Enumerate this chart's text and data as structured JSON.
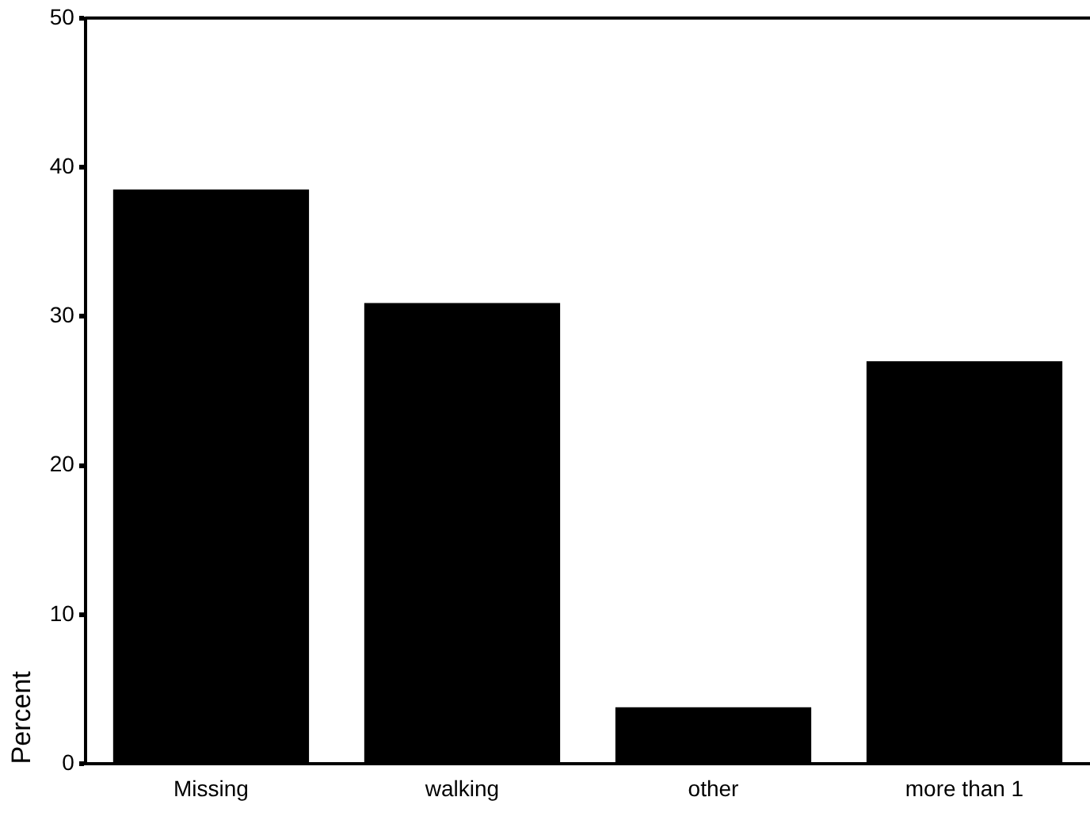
{
  "chart_data": {
    "type": "bar",
    "ylabel": "Percent",
    "categories": [
      "Missing",
      "walking",
      "other",
      "more than 1"
    ],
    "values": [
      38.5,
      30.9,
      3.8,
      27.0
    ],
    "color": "#000000",
    "ylim": [
      0,
      50
    ],
    "yticks": [
      0,
      10,
      20,
      30,
      40,
      50
    ],
    "grid": false,
    "legend": false
  }
}
